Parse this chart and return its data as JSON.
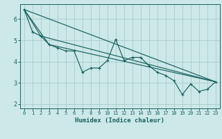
{
  "xlabel": "Humidex (Indice chaleur)",
  "bg_color": "#cce8e8",
  "grid_color": "#aacccc",
  "line_color": "#1a6060",
  "xlim": [
    -0.5,
    23.5
  ],
  "ylim": [
    1.8,
    6.7
  ],
  "yticks": [
    2,
    3,
    4,
    5,
    6
  ],
  "xticks": [
    0,
    1,
    2,
    3,
    4,
    5,
    6,
    7,
    8,
    9,
    10,
    11,
    12,
    13,
    14,
    15,
    16,
    17,
    18,
    19,
    20,
    21,
    22,
    23
  ],
  "series1_x": [
    0,
    1,
    2,
    3,
    4,
    5,
    6,
    7,
    8,
    9,
    10,
    11,
    12,
    13,
    14,
    15,
    16,
    17,
    18,
    19,
    20,
    21,
    22,
    23
  ],
  "series1_y": [
    6.45,
    5.4,
    5.2,
    4.8,
    4.65,
    4.5,
    4.5,
    3.5,
    3.7,
    3.7,
    4.05,
    5.05,
    4.05,
    4.2,
    4.2,
    3.8,
    3.5,
    3.35,
    3.1,
    2.45,
    2.95,
    2.6,
    2.7,
    3.05
  ],
  "series2_x": [
    0,
    23
  ],
  "series2_y": [
    6.45,
    3.05
  ],
  "series3_x": [
    0,
    2,
    23
  ],
  "series3_y": [
    6.45,
    5.2,
    3.05
  ],
  "series4_x": [
    0,
    3,
    23
  ],
  "series4_y": [
    6.45,
    4.8,
    3.05
  ]
}
